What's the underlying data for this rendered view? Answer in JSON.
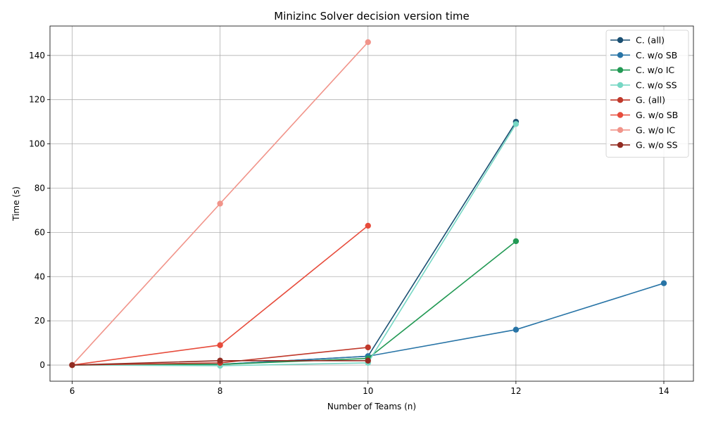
{
  "chart_data": {
    "type": "line",
    "title": "Minizinc Solver decision version time",
    "xlabel": "Number of Teams (n)",
    "ylabel": "Time (s)",
    "xlim": [
      5.7,
      14.4
    ],
    "ylim": [
      -7.3,
      153.3
    ],
    "xticks": [
      6,
      8,
      10,
      12,
      14
    ],
    "yticks": [
      0,
      20,
      40,
      60,
      80,
      100,
      120,
      140
    ],
    "grid": true,
    "legend_position": "upper right",
    "series": [
      {
        "name": "C. (all)",
        "color": "#1a4f72",
        "x": [
          6,
          8,
          10,
          12
        ],
        "y": [
          0,
          0.3,
          4,
          110
        ]
      },
      {
        "name": "C. w/o SB",
        "color": "#2874a6",
        "x": [
          6,
          8,
          10,
          12,
          14
        ],
        "y": [
          0,
          0.3,
          4,
          16,
          37
        ]
      },
      {
        "name": "C. w/o IC",
        "color": "#229954",
        "x": [
          6,
          8,
          10,
          12
        ],
        "y": [
          0,
          0.3,
          3,
          56
        ]
      },
      {
        "name": "C. w/o SS",
        "color": "#76d7c4",
        "x": [
          6,
          8,
          10,
          12
        ],
        "y": [
          0,
          -0.3,
          1,
          109
        ]
      },
      {
        "name": "G. (all)",
        "color": "#c0392b",
        "x": [
          6,
          8,
          10
        ],
        "y": [
          0,
          1,
          8
        ]
      },
      {
        "name": "G. w/o SB",
        "color": "#e74c3c",
        "x": [
          6,
          8,
          10
        ],
        "y": [
          0,
          9,
          63
        ]
      },
      {
        "name": "G. w/o IC",
        "color": "#f1948a",
        "x": [
          6,
          8,
          10
        ],
        "y": [
          0,
          73,
          146
        ]
      },
      {
        "name": "G. w/o SS",
        "color": "#922b21",
        "x": [
          6,
          8,
          10
        ],
        "y": [
          0,
          2,
          2
        ]
      }
    ]
  }
}
